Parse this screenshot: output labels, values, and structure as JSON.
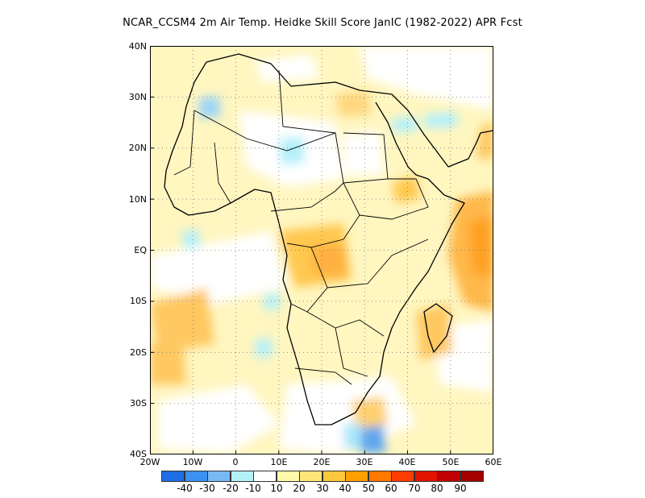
{
  "title": "NCAR_CCSM4  2m Air Temp. Heidke Skill Score JanIC (1982-2022) APR Fcst",
  "map": {
    "lat_labels": [
      "40N",
      "30N",
      "20N",
      "10N",
      "EQ",
      "10S",
      "20S",
      "30S",
      "40S"
    ],
    "lon_labels": [
      "20W",
      "10W",
      "0",
      "10E",
      "20E",
      "30E",
      "40E",
      "50E",
      "60E"
    ],
    "lat_range": [
      -40,
      40
    ],
    "lon_range": [
      -20,
      60
    ],
    "grid": "dotted",
    "region": "Africa"
  },
  "colorbar": {
    "colors": [
      "#1e6ee6",
      "#3c91f0",
      "#78b9f5",
      "#b4f0fa",
      "#ffffff",
      "#fffaaa",
      "#ffe678",
      "#ffc83c",
      "#ffa000",
      "#ff7800",
      "#ff3c00",
      "#e11400",
      "#c00000",
      "#a50000"
    ],
    "labels": [
      "-40",
      "-30",
      "-20",
      "-10",
      "10",
      "20",
      "30",
      "40",
      "50",
      "60",
      "70",
      "80",
      "90"
    ]
  }
}
